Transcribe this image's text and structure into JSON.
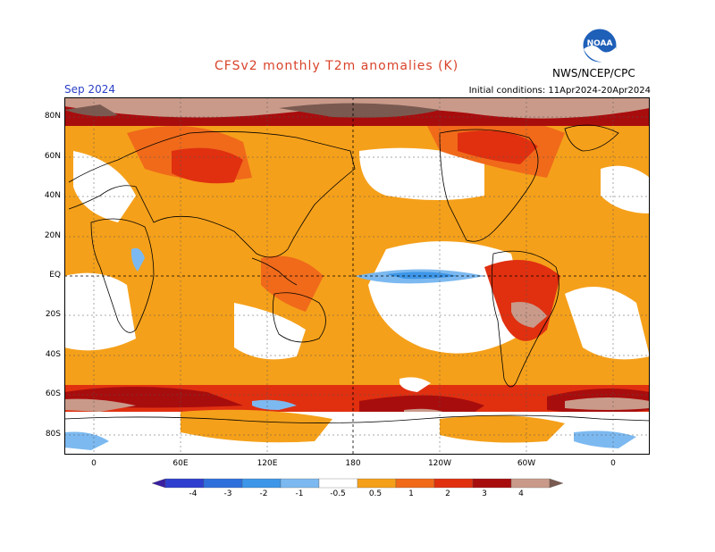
{
  "title": "CFSv2 monthly T2m anomalies (K)",
  "valid_month": "Sep 2024",
  "initial_conditions": "Initial conditions: 11Apr2024-20Apr2024",
  "agency": "NWS/NCEP/CPC",
  "logo_text": "NOAA",
  "lat_labels": [
    "80N",
    "60N",
    "40N",
    "20N",
    "EQ",
    "20S",
    "40S",
    "60S",
    "80S"
  ],
  "lon_labels": [
    "0",
    "60E",
    "120E",
    "180",
    "120W",
    "60W",
    "0"
  ],
  "colorbar": {
    "labels": [
      "-4",
      "-3",
      "-2",
      "-1",
      "-0.5",
      "0.5",
      "1",
      "2",
      "3",
      "4"
    ],
    "colors": [
      "#3a1fa0",
      "#2e3fcf",
      "#2f6fdc",
      "#3d96e8",
      "#7cb9f0",
      "#ffffff",
      "#f5a01a",
      "#f06a1a",
      "#e03010",
      "#a80d0d",
      "#c99a8a",
      "#7a5a50"
    ]
  },
  "colors": {
    "title": "#d9432a",
    "date": "#2a3fc4",
    "anomaly_half": "#f5a01a",
    "anomaly_one": "#f06a1a",
    "anomaly_two": "#e03010",
    "anomaly_three": "#a80d0d",
    "anomaly_four": "#c99a8a",
    "anomaly_max": "#7a5a50",
    "neg_half": "#7cb9f0",
    "neg_one": "#3d96e8"
  }
}
